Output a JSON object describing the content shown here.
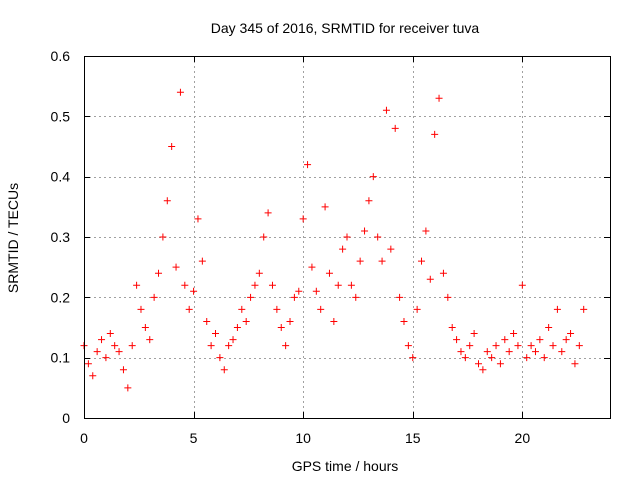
{
  "chart_data": {
    "type": "scatter",
    "title": "Day 345 of 2016, SRMTID for receiver tuva",
    "xlabel": "GPS time / hours",
    "ylabel": "SRMTID / TECUs",
    "xlim": [
      0,
      24
    ],
    "ylim": [
      0,
      0.6
    ],
    "xticks": [
      0,
      5,
      10,
      15,
      20
    ],
    "xtick_labels": [
      "0",
      "5",
      "10",
      "15",
      "20"
    ],
    "yticks": [
      0,
      0.1,
      0.2,
      0.3,
      0.4,
      0.5,
      0.6
    ],
    "ytick_labels": [
      "0",
      "0.1",
      "0.2",
      "0.3",
      "0.4",
      "0.5",
      "0.6"
    ],
    "grid": true,
    "marker": "+",
    "marker_color": "#ff0000",
    "x_range_of_data": [
      0,
      22.8
    ],
    "series": [
      {
        "name": "SRMTID",
        "x": [
          0.0,
          0.2,
          0.4,
          0.6,
          0.8,
          1.0,
          1.2,
          1.4,
          1.6,
          1.8,
          2.0,
          2.2,
          2.4,
          2.6,
          2.8,
          3.0,
          3.2,
          3.4,
          3.6,
          3.8,
          4.0,
          4.2,
          4.4,
          4.6,
          4.8,
          5.0,
          5.2,
          5.4,
          5.6,
          5.8,
          6.0,
          6.2,
          6.4,
          6.6,
          6.8,
          7.0,
          7.2,
          7.4,
          7.6,
          7.8,
          8.0,
          8.2,
          8.4,
          8.6,
          8.8,
          9.0,
          9.2,
          9.4,
          9.6,
          9.8,
          10.0,
          10.2,
          10.4,
          10.6,
          10.8,
          11.0,
          11.2,
          11.4,
          11.6,
          11.8,
          12.0,
          12.2,
          12.4,
          12.6,
          12.8,
          13.0,
          13.2,
          13.4,
          13.6,
          13.8,
          14.0,
          14.2,
          14.4,
          14.6,
          14.8,
          15.0,
          15.2,
          15.4,
          15.6,
          15.8,
          16.0,
          16.2,
          16.4,
          16.6,
          16.8,
          17.0,
          17.2,
          17.4,
          17.6,
          17.8,
          18.0,
          18.2,
          18.4,
          18.6,
          18.8,
          19.0,
          19.2,
          19.4,
          19.6,
          19.8,
          20.0,
          20.2,
          20.4,
          20.6,
          20.8,
          21.0,
          21.2,
          21.4,
          21.6,
          21.8,
          22.0,
          22.2,
          22.4,
          22.6,
          22.8
        ],
        "y": [
          0.12,
          0.09,
          0.07,
          0.11,
          0.13,
          0.1,
          0.14,
          0.12,
          0.11,
          0.08,
          0.05,
          0.12,
          0.22,
          0.18,
          0.15,
          0.13,
          0.2,
          0.24,
          0.3,
          0.36,
          0.45,
          0.25,
          0.54,
          0.22,
          0.18,
          0.21,
          0.33,
          0.26,
          0.16,
          0.12,
          0.14,
          0.1,
          0.08,
          0.12,
          0.13,
          0.15,
          0.18,
          0.16,
          0.2,
          0.22,
          0.24,
          0.3,
          0.34,
          0.22,
          0.18,
          0.15,
          0.12,
          0.16,
          0.2,
          0.21,
          0.33,
          0.42,
          0.25,
          0.21,
          0.18,
          0.35,
          0.24,
          0.16,
          0.22,
          0.28,
          0.3,
          0.22,
          0.2,
          0.26,
          0.31,
          0.36,
          0.4,
          0.3,
          0.26,
          0.51,
          0.28,
          0.48,
          0.2,
          0.16,
          0.12,
          0.1,
          0.18,
          0.26,
          0.31,
          0.23,
          0.47,
          0.53,
          0.24,
          0.2,
          0.15,
          0.13,
          0.11,
          0.1,
          0.12,
          0.14,
          0.09,
          0.08,
          0.11,
          0.1,
          0.12,
          0.09,
          0.13,
          0.11,
          0.14,
          0.12,
          0.22,
          0.1,
          0.12,
          0.11,
          0.13,
          0.1,
          0.15,
          0.12,
          0.18,
          0.11,
          0.13,
          0.14,
          0.09,
          0.12,
          0.18
        ]
      }
    ]
  }
}
